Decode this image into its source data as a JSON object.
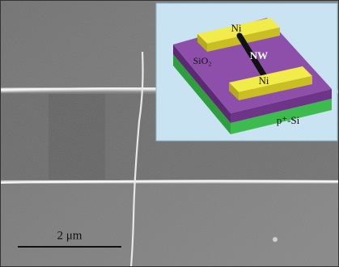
{
  "inset": {
    "labels": {
      "ni_top": "Ni",
      "nanowire": "NW",
      "oxide": "SiO₂",
      "ni_bottom": "Ni",
      "substrate": "p⁺-Si"
    }
  },
  "scale_bar": {
    "label": "2 μm"
  }
}
